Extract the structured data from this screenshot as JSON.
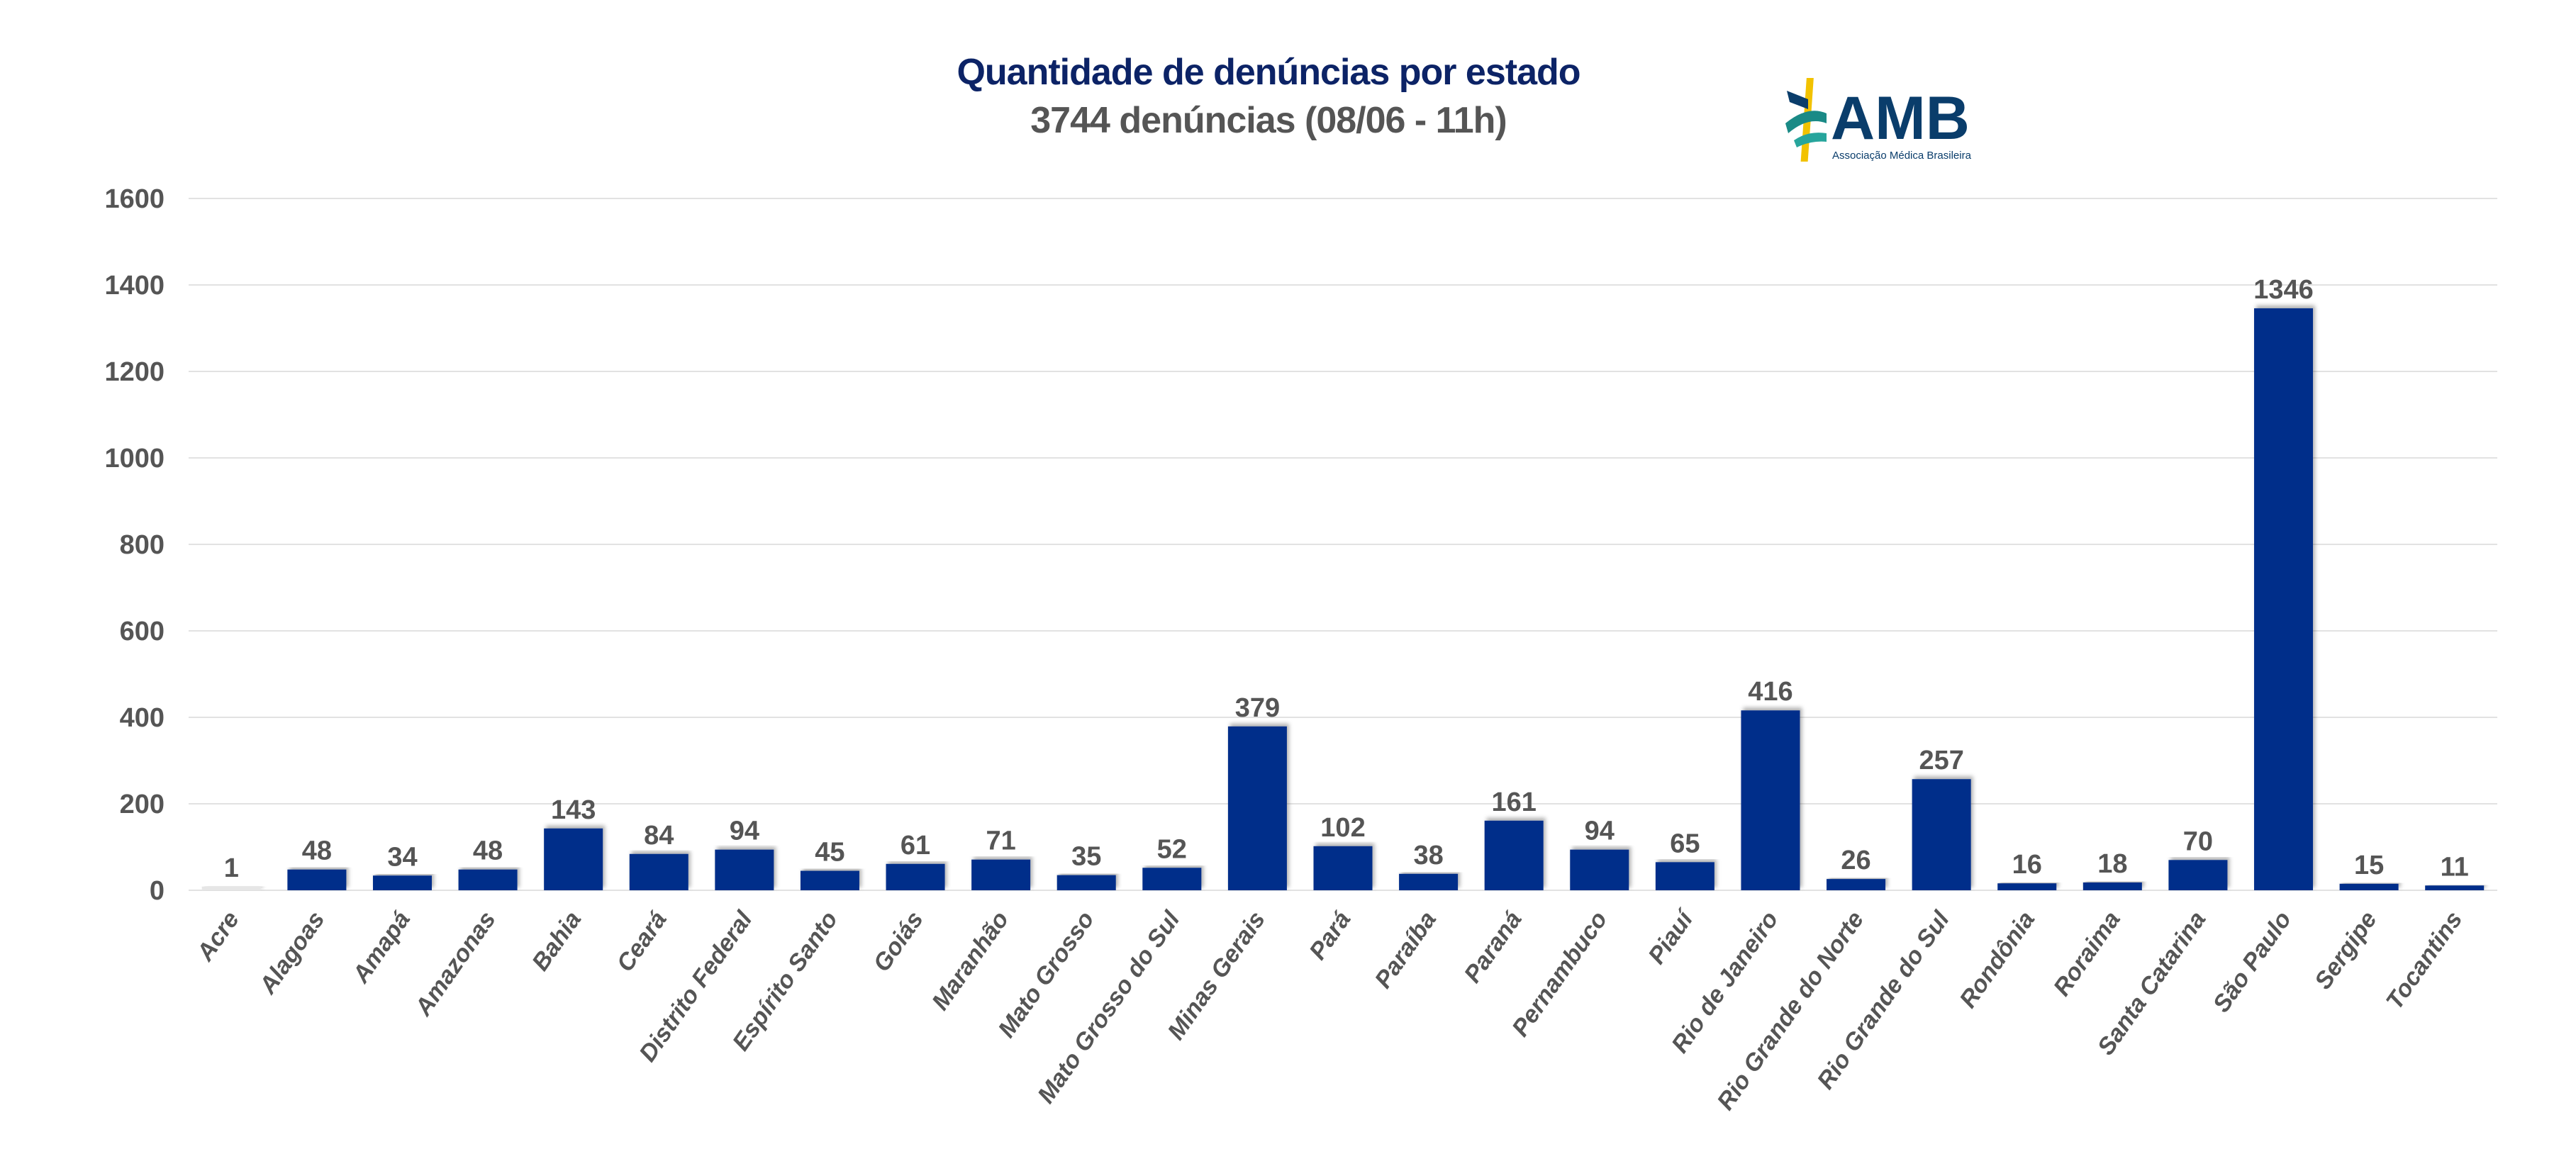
{
  "chart_data": {
    "type": "bar",
    "title": "Quantidade de denúncias por estado",
    "subtitle": "3744 denúncias (08/06 - 11h)",
    "xlabel": "",
    "ylabel": "",
    "ylim": [
      0,
      1600
    ],
    "yticks": [
      0,
      200,
      400,
      600,
      800,
      1000,
      1200,
      1400,
      1600
    ],
    "grid": true,
    "categories": [
      "Acre",
      "Alagoas",
      "Amapá",
      "Amazonas",
      "Bahia",
      "Ceará",
      "Distrito Federal",
      "Espírito Santo",
      "Goiás",
      "Maranhão",
      "Mato Grosso",
      "Mato Grosso do Sul",
      "Minas Gerais",
      "Pará",
      "Paraíba",
      "Paraná",
      "Pernambuco",
      "Piauí",
      "Rio de Janeiro",
      "Rio Grande do Norte",
      "Rio Grande do Sul",
      "Rondônia",
      "Roraima",
      "Santa Catarina",
      "São Paulo",
      "Sergipe",
      "Tocantins"
    ],
    "values": [
      1,
      48,
      34,
      48,
      143,
      84,
      94,
      45,
      61,
      71,
      35,
      52,
      379,
      102,
      38,
      161,
      94,
      65,
      416,
      26,
      257,
      16,
      18,
      70,
      1346,
      15,
      11
    ],
    "bar_color": "#012d8a",
    "acre_bar_color": "#e6e6e6"
  },
  "logo": {
    "text": "AMB",
    "subtext": "Associação Médica Brasileira"
  }
}
